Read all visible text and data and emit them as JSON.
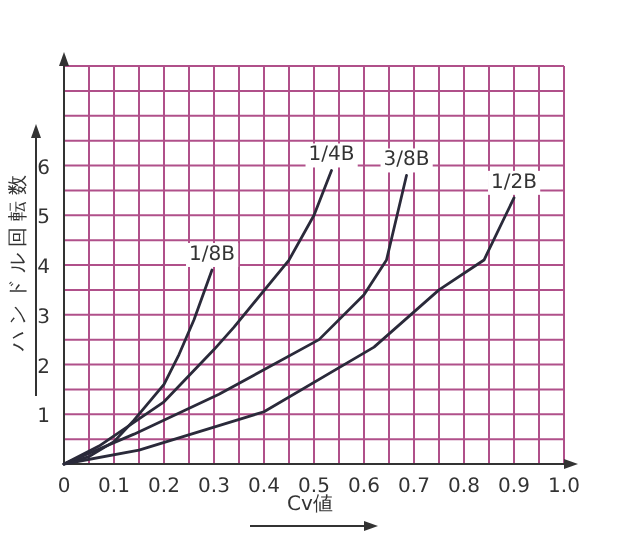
{
  "chart_data": {
    "type": "line",
    "xlabel": "Cv値",
    "ylabel": "ハンドル回転数",
    "xlim": [
      0,
      1
    ],
    "ylim": [
      0,
      8
    ],
    "xticks": [
      0,
      {
        "value": 0.05,
        "label": null
      },
      0.1,
      {
        "value": 0.15,
        "label": null
      },
      0.2,
      {
        "value": 0.25,
        "label": null
      },
      0.3,
      {
        "value": 0.35,
        "label": null
      },
      0.4,
      {
        "value": 0.45,
        "label": null
      },
      0.5,
      {
        "value": 0.55,
        "label": null
      },
      0.6,
      {
        "value": 0.65,
        "label": null
      },
      0.7,
      {
        "value": 0.75,
        "label": null
      },
      0.8,
      {
        "value": 0.85,
        "label": null
      },
      0.9,
      {
        "value": 0.95,
        "label": null
      },
      {
        "value": 1,
        "label": "1.0"
      }
    ],
    "yticks": [
      {
        "value": 0,
        "label": null
      },
      {
        "value": 0.5,
        "label": null
      },
      1,
      {
        "value": 1.5,
        "label": null
      },
      2,
      {
        "value": 2.5,
        "label": null
      },
      3,
      {
        "value": 3.5,
        "label": null
      },
      4,
      {
        "value": 4.5,
        "label": null
      },
      5,
      {
        "value": 5.5,
        "label": null
      },
      6,
      {
        "value": 6.5,
        "label": null
      },
      {
        "value": 7,
        "label": null
      },
      {
        "value": 7.5,
        "label": null
      },
      {
        "value": 8,
        "label": null
      }
    ],
    "grid": true,
    "marker": "none",
    "line_style": "solid",
    "series": [
      {
        "name": "1/8B",
        "color": "#2a2a3a",
        "x": [
          0,
          0.05,
          0.1,
          0.14,
          0.2,
          0.23,
          0.26,
          0.296
        ],
        "values": [
          0,
          0.15,
          0.45,
          0.88,
          1.6,
          2.2,
          2.9,
          3.9
        ]
      },
      {
        "name": "1/4B",
        "color": "#2a2a3a",
        "x": [
          0,
          0.07,
          0.2,
          0.3,
          0.34,
          0.45,
          0.5,
          0.535
        ],
        "values": [
          0,
          0.36,
          1.25,
          2.3,
          2.75,
          4.1,
          5.0,
          5.9
        ]
      },
      {
        "name": "3/8B",
        "color": "#2a2a3a",
        "x": [
          0,
          0.14,
          0.31,
          0.51,
          0.6,
          0.645,
          0.685
        ],
        "values": [
          0,
          0.6,
          1.4,
          2.5,
          3.4,
          4.1,
          5.8
        ]
      },
      {
        "name": "1/2B",
        "color": "#2a2a3a",
        "x": [
          0,
          0.15,
          0.4,
          0.62,
          0.75,
          0.84,
          0.9
        ],
        "values": [
          0,
          0.28,
          1.05,
          2.35,
          3.5,
          4.1,
          5.35
        ]
      }
    ]
  }
}
